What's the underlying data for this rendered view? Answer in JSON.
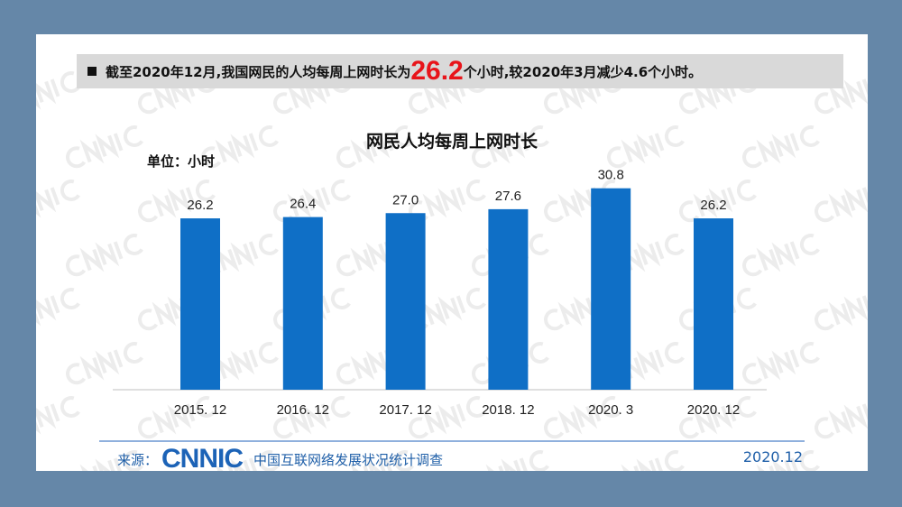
{
  "banner": {
    "prefix": "截至2020年12月,我国网民的人均每周上网时长为",
    "highlight": "26.2",
    "suffix": "个小时,较2020年3月减少4.6个小时。"
  },
  "watermark": "CNNIC",
  "chart_data": {
    "type": "bar",
    "title": "网民人均每周上网时长",
    "unit_label": "单位：小时",
    "categories": [
      "2015. 12",
      "2016. 12",
      "2017. 12",
      "2018. 12",
      "2020. 3",
      "2020. 12"
    ],
    "values": [
      26.2,
      26.4,
      27.0,
      27.6,
      30.8,
      26.2
    ],
    "value_labels": [
      "26.2",
      "26.4",
      "27.0",
      "27.6",
      "30.8",
      "26.2"
    ],
    "ylim": [
      0,
      34
    ],
    "grid": false,
    "bar_color": "#0f6fc6"
  },
  "footer": {
    "source_label": "来源：",
    "logo": "CNNIC",
    "org": "中国互联网络发展状况统计调查",
    "date": "2020.12"
  }
}
